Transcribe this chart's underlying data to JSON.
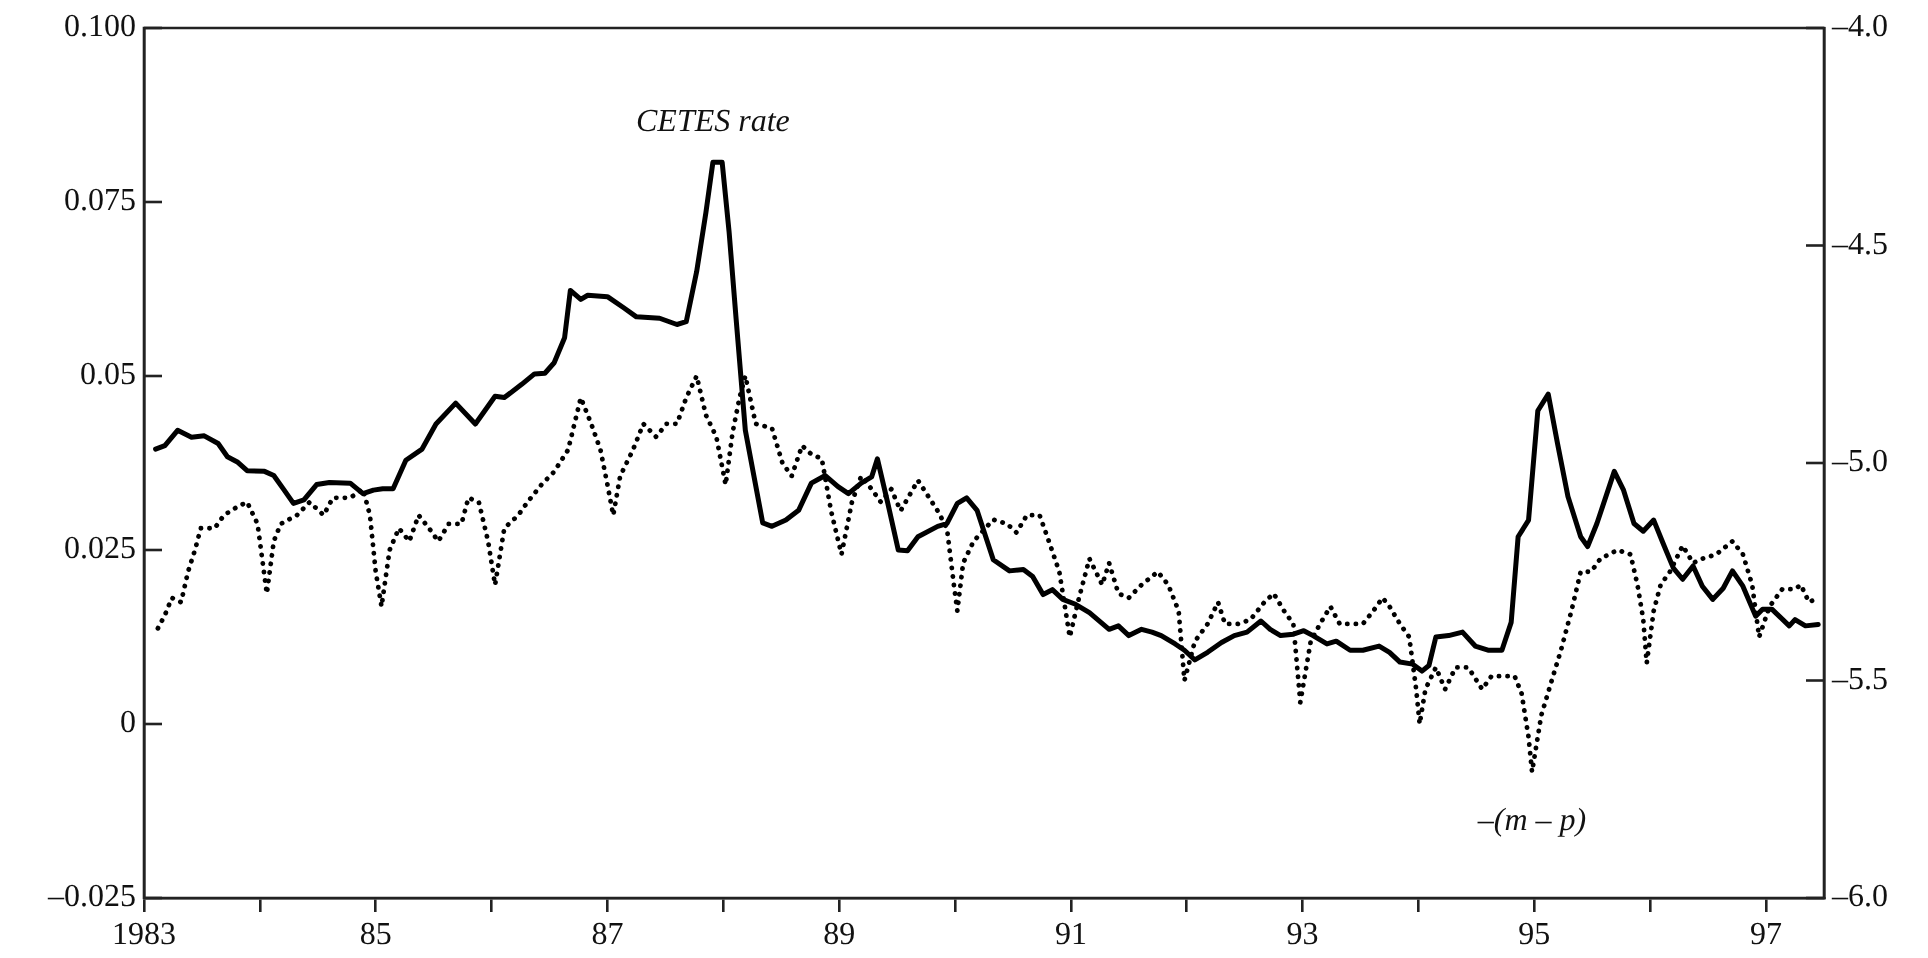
{
  "chart_data": {
    "type": "line",
    "xlim": [
      1983,
      1997.5
    ],
    "xticks": [
      1983,
      {
        "value": 1984,
        "label": null
      },
      {
        "value": 1985,
        "label": "85"
      },
      {
        "value": 1986,
        "label": null
      },
      {
        "value": 1987,
        "label": "87"
      },
      {
        "value": 1988,
        "label": null
      },
      {
        "value": 1989,
        "label": "89"
      },
      {
        "value": 1990,
        "label": null
      },
      {
        "value": 1991,
        "label": "91"
      },
      {
        "value": 1992,
        "label": null
      },
      {
        "value": 1993,
        "label": "93"
      },
      {
        "value": 1994,
        "label": null
      },
      {
        "value": 1995,
        "label": "95"
      },
      {
        "value": 1996,
        "label": null
      },
      {
        "value": 1997,
        "label": "97"
      }
    ],
    "ylim": [
      -0.025,
      0.1
    ],
    "yticks": [
      {
        "value": -0.025,
        "label": "–0.025"
      },
      0,
      0.025,
      0.05,
      0.075,
      {
        "value": 0.1,
        "label": "0.100"
      }
    ],
    "y2lim": [
      -6,
      -4
    ],
    "y2ticks": [
      {
        "value": -6,
        "label": "–6.0"
      },
      {
        "value": -5.5,
        "label": "–5.5"
      },
      {
        "value": -5,
        "label": "–5.0"
      },
      {
        "value": -4.5,
        "label": "–4.5"
      },
      {
        "value": -4,
        "label": "–4.0"
      }
    ],
    "grid": false,
    "legend": false,
    "series": [
      {
        "name": "CETES rate",
        "color": "#000000",
        "line_style": "solid",
        "x": [
          1983.1,
          1983.18,
          1983.29,
          1983.41,
          1983.52,
          1983.64,
          1983.72,
          1983.81,
          1983.89,
          1984.04,
          1984.12,
          1984.21,
          1984.29,
          1984.38,
          1984.49,
          1984.6,
          1984.78,
          1984.89,
          1984.98,
          1985.06,
          1985.15,
          1985.26,
          1985.4,
          1985.52,
          1985.69,
          1985.86,
          1986.03,
          1986.11,
          1986.26,
          1986.37,
          1986.46,
          1986.54,
          1986.63,
          1986.68,
          1986.77,
          1986.83,
          1987.0,
          1987.14,
          1987.25,
          1987.45,
          1987.6,
          1987.68,
          1987.77,
          1987.85,
          1987.91,
          1987.99,
          1988.05,
          1988.11,
          1988.19,
          1988.34,
          1988.42,
          1988.54,
          1988.65,
          1988.76,
          1988.88,
          1988.99,
          1989.08,
          1989.19,
          1989.28,
          1989.33,
          1989.42,
          1989.51,
          1989.59,
          1989.68,
          1989.85,
          1989.93,
          1990.02,
          1990.1,
          1990.19,
          1990.33,
          1990.47,
          1990.59,
          1990.67,
          1990.76,
          1990.84,
          1990.93,
          1991.04,
          1991.16,
          1991.33,
          1991.41,
          1991.5,
          1991.61,
          1991.7,
          1991.78,
          1991.9,
          1991.98,
          1992.07,
          1992.18,
          1992.3,
          1992.41,
          1992.52,
          1992.64,
          1992.72,
          1992.81,
          1992.92,
          1993.01,
          1993.09,
          1993.21,
          1993.29,
          1993.41,
          1993.52,
          1993.66,
          1993.75,
          1993.84,
          1993.95,
          1994.03,
          1994.09,
          1994.15,
          1994.26,
          1994.38,
          1994.49,
          1994.6,
          1994.72,
          1994.8,
          1994.86,
          1994.95,
          1995.03,
          1995.12,
          1995.2,
          1995.29,
          1995.4,
          1995.46,
          1995.54,
          1995.69,
          1995.77,
          1995.86,
          1995.94,
          1996.03,
          1996.11,
          1996.2,
          1996.28,
          1996.37,
          1996.45,
          1996.54,
          1996.63,
          1996.71,
          1996.8,
          1996.91,
          1996.97,
          1997.05,
          1997.2,
          1997.25,
          1997.34,
          1997.45
        ],
        "values": [
          0.0395,
          0.04,
          0.0422,
          0.0412,
          0.0414,
          0.0403,
          0.0384,
          0.0376,
          0.0364,
          0.0363,
          0.0357,
          0.0336,
          0.0317,
          0.0322,
          0.0344,
          0.0347,
          0.0346,
          0.0331,
          0.0336,
          0.0338,
          0.0338,
          0.0379,
          0.0395,
          0.0431,
          0.0461,
          0.0431,
          0.0471,
          0.0469,
          0.0488,
          0.0503,
          0.0504,
          0.0519,
          0.0555,
          0.0623,
          0.061,
          0.0616,
          0.0614,
          0.0598,
          0.0585,
          0.0583,
          0.0574,
          0.0578,
          0.065,
          0.0735,
          0.0807,
          0.0807,
          0.0707,
          0.0583,
          0.0422,
          0.0289,
          0.0284,
          0.0293,
          0.0307,
          0.0346,
          0.0357,
          0.0341,
          0.0331,
          0.0346,
          0.0355,
          0.0381,
          0.0317,
          0.025,
          0.0249,
          0.0269,
          0.0284,
          0.0288,
          0.0317,
          0.0325,
          0.0307,
          0.0236,
          0.022,
          0.0222,
          0.0212,
          0.0186,
          0.0193,
          0.0179,
          0.0172,
          0.016,
          0.0136,
          0.0141,
          0.0127,
          0.0136,
          0.0132,
          0.0127,
          0.0115,
          0.0106,
          0.0092,
          0.0103,
          0.0117,
          0.0127,
          0.0132,
          0.0148,
          0.0136,
          0.0127,
          0.0129,
          0.0134,
          0.0127,
          0.0115,
          0.0119,
          0.0106,
          0.0106,
          0.0112,
          0.0103,
          0.0089,
          0.0086,
          0.0076,
          0.0084,
          0.0125,
          0.0127,
          0.0132,
          0.0112,
          0.0106,
          0.0106,
          0.0146,
          0.0269,
          0.0293,
          0.045,
          0.0474,
          0.0403,
          0.0327,
          0.0269,
          0.0255,
          0.0288,
          0.0363,
          0.0336,
          0.0288,
          0.0277,
          0.0293,
          0.026,
          0.0224,
          0.0208,
          0.0227,
          0.0198,
          0.0179,
          0.0195,
          0.022,
          0.0198,
          0.0155,
          0.0165,
          0.0165,
          0.0141,
          0.015,
          0.0141,
          0.0143
        ]
      },
      {
        "name": "–(m – p)",
        "color": "#000000",
        "line_style": "dotted",
        "axis": "y2",
        "x": [
          1983.12,
          1983.18,
          1983.24,
          1983.32,
          1983.38,
          1983.44,
          1983.49,
          1983.61,
          1983.69,
          1983.81,
          1983.89,
          1983.98,
          1984.04,
          1984.06,
          1984.12,
          1984.18,
          1984.32,
          1984.43,
          1984.55,
          1984.63,
          1984.78,
          1984.89,
          1984.95,
          1985.0,
          1985.05,
          1985.12,
          1985.2,
          1985.29,
          1985.37,
          1985.46,
          1985.54,
          1985.63,
          1985.74,
          1985.8,
          1985.89,
          1985.97,
          1986.03,
          1986.11,
          1986.23,
          1986.31,
          1986.43,
          1986.54,
          1986.66,
          1986.77,
          1986.86,
          1986.94,
          1987.0,
          1987.05,
          1987.11,
          1987.22,
          1987.31,
          1987.42,
          1987.51,
          1987.6,
          1987.68,
          1987.77,
          1987.85,
          1987.94,
          1988.02,
          1988.08,
          1988.14,
          1988.19,
          1988.28,
          1988.42,
          1988.51,
          1988.59,
          1988.68,
          1988.76,
          1988.85,
          1988.93,
          1989.02,
          1989.11,
          1989.19,
          1989.28,
          1989.36,
          1989.45,
          1989.53,
          1989.68,
          1989.85,
          1989.93,
          1989.99,
          1990.02,
          1990.07,
          1990.16,
          1990.33,
          1990.45,
          1990.53,
          1990.62,
          1990.73,
          1990.81,
          1990.9,
          1990.99,
          1991.07,
          1991.16,
          1991.27,
          1991.33,
          1991.41,
          1991.5,
          1991.61,
          1991.75,
          1991.84,
          1991.93,
          1991.98,
          1992.07,
          1992.18,
          1992.27,
          1992.33,
          1992.44,
          1992.55,
          1992.67,
          1992.75,
          1992.84,
          1992.92,
          1992.98,
          1993.07,
          1993.15,
          1993.24,
          1993.32,
          1993.44,
          1993.52,
          1993.61,
          1993.69,
          1993.75,
          1993.84,
          1993.92,
          1993.98,
          1994.01,
          1994.06,
          1994.15,
          1994.23,
          1994.32,
          1994.43,
          1994.55,
          1994.63,
          1994.75,
          1994.83,
          1994.89,
          1994.95,
          1994.98,
          1995.06,
          1995.15,
          1995.23,
          1995.32,
          1995.4,
          1995.49,
          1995.57,
          1995.72,
          1995.83,
          1995.89,
          1995.94,
          1995.97,
          1996.03,
          1996.09,
          1996.17,
          1996.28,
          1996.37,
          1996.45,
          1996.57,
          1996.71,
          1996.8,
          1996.88,
          1996.94,
          1997.03,
          1997.14,
          1997.25,
          1997.3,
          1997.37,
          1997.45
        ],
        "values": [
          -5.38,
          -5.35,
          -5.31,
          -5.32,
          -5.25,
          -5.2,
          -5.15,
          -5.15,
          -5.12,
          -5.1,
          -5.09,
          -5.14,
          -5.26,
          -5.3,
          -5.18,
          -5.14,
          -5.12,
          -5.09,
          -5.12,
          -5.08,
          -5.08,
          -5.06,
          -5.12,
          -5.25,
          -5.33,
          -5.2,
          -5.15,
          -5.18,
          -5.12,
          -5.15,
          -5.18,
          -5.14,
          -5.14,
          -5.08,
          -5.09,
          -5.18,
          -5.28,
          -5.15,
          -5.12,
          -5.09,
          -5.05,
          -5.02,
          -4.97,
          -4.85,
          -4.91,
          -4.97,
          -5.05,
          -5.12,
          -5.03,
          -4.97,
          -4.91,
          -4.94,
          -4.91,
          -4.91,
          -4.85,
          -4.8,
          -4.89,
          -4.94,
          -5.05,
          -4.93,
          -4.85,
          -4.8,
          -4.91,
          -4.92,
          -5.0,
          -5.03,
          -4.96,
          -4.98,
          -4.99,
          -5.11,
          -5.21,
          -5.09,
          -5.03,
          -5.06,
          -5.09,
          -5.06,
          -5.11,
          -5.04,
          -5.11,
          -5.15,
          -5.28,
          -5.34,
          -5.23,
          -5.18,
          -5.13,
          -5.14,
          -5.16,
          -5.12,
          -5.12,
          -5.18,
          -5.25,
          -5.4,
          -5.31,
          -5.22,
          -5.28,
          -5.23,
          -5.3,
          -5.31,
          -5.28,
          -5.25,
          -5.28,
          -5.34,
          -5.5,
          -5.41,
          -5.37,
          -5.32,
          -5.37,
          -5.37,
          -5.36,
          -5.32,
          -5.3,
          -5.34,
          -5.37,
          -5.55,
          -5.41,
          -5.37,
          -5.33,
          -5.37,
          -5.37,
          -5.37,
          -5.34,
          -5.31,
          -5.33,
          -5.37,
          -5.4,
          -5.52,
          -5.6,
          -5.52,
          -5.47,
          -5.52,
          -5.47,
          -5.47,
          -5.52,
          -5.49,
          -5.49,
          -5.49,
          -5.53,
          -5.63,
          -5.71,
          -5.58,
          -5.5,
          -5.43,
          -5.34,
          -5.25,
          -5.25,
          -5.22,
          -5.2,
          -5.21,
          -5.28,
          -5.36,
          -5.46,
          -5.34,
          -5.28,
          -5.25,
          -5.19,
          -5.23,
          -5.22,
          -5.21,
          -5.18,
          -5.21,
          -5.28,
          -5.4,
          -5.33,
          -5.29,
          -5.29,
          -5.28,
          -5.32,
          -5.31
        ]
      }
    ]
  }
}
